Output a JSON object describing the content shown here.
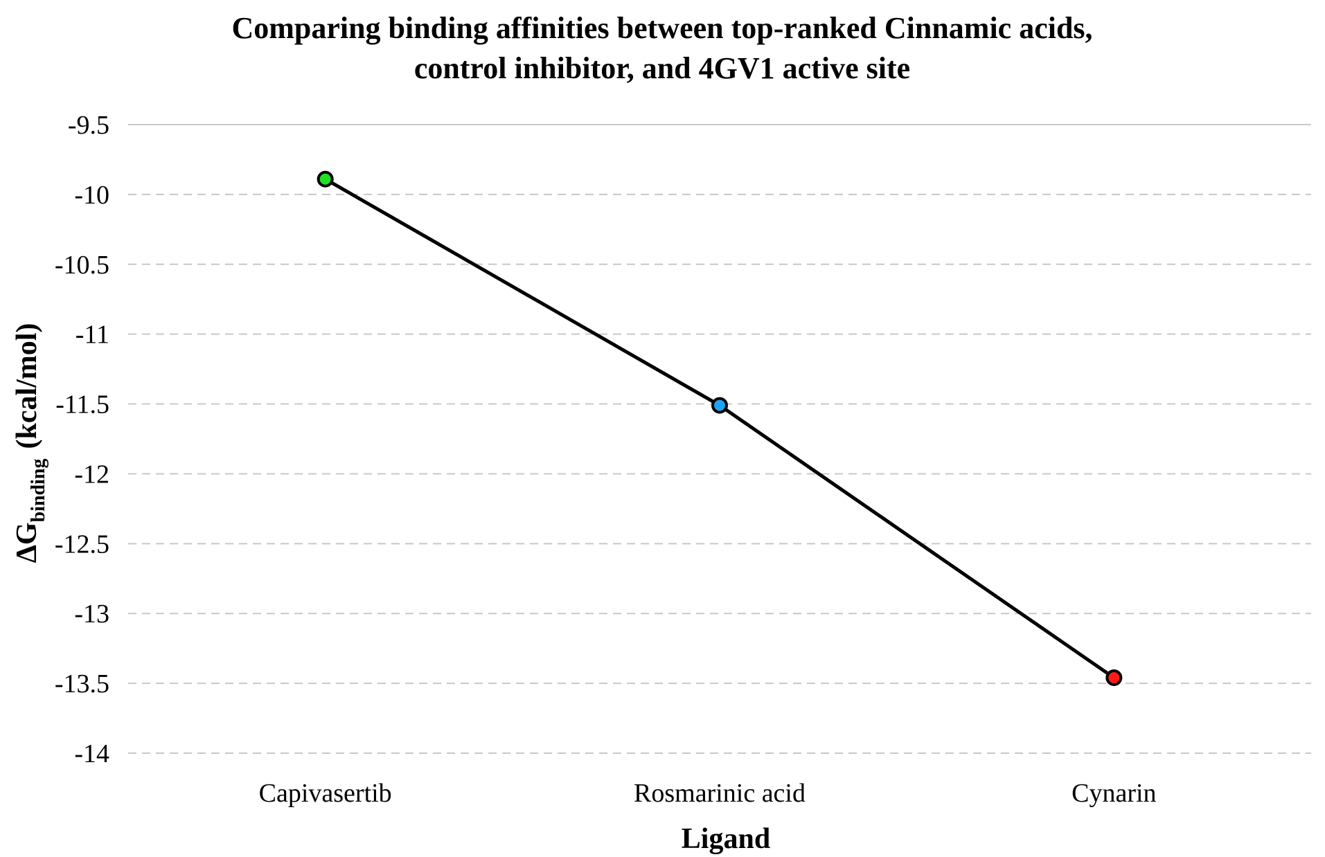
{
  "chart_data": {
    "type": "line",
    "title_lines": [
      "Comparing binding affinities between top-ranked Cinnamic acids,",
      "control inhibitor, and 4GV1 active site"
    ],
    "xlabel": "Ligand",
    "ylabel": {
      "prefix": "ΔG",
      "subscript": "binding",
      "suffix": "(kcal/mol)"
    },
    "categories": [
      "Capivasertib",
      "Rosmarinic acid",
      "Cynarin"
    ],
    "series": [
      {
        "values": [
          -9.89,
          -11.51,
          -13.46
        ],
        "line_color": "#000000",
        "marker_colors": [
          "#22e022",
          "#1fa3f2",
          "#ff1a1a"
        ]
      }
    ],
    "ylim": [
      -14,
      -9.5
    ],
    "yticks": [
      "-9.5",
      "-10",
      "-10.5",
      "-11",
      "-11.5",
      "-12",
      "-12.5",
      "-13",
      "-13.5",
      "-14"
    ],
    "grid": true,
    "legend": false
  }
}
